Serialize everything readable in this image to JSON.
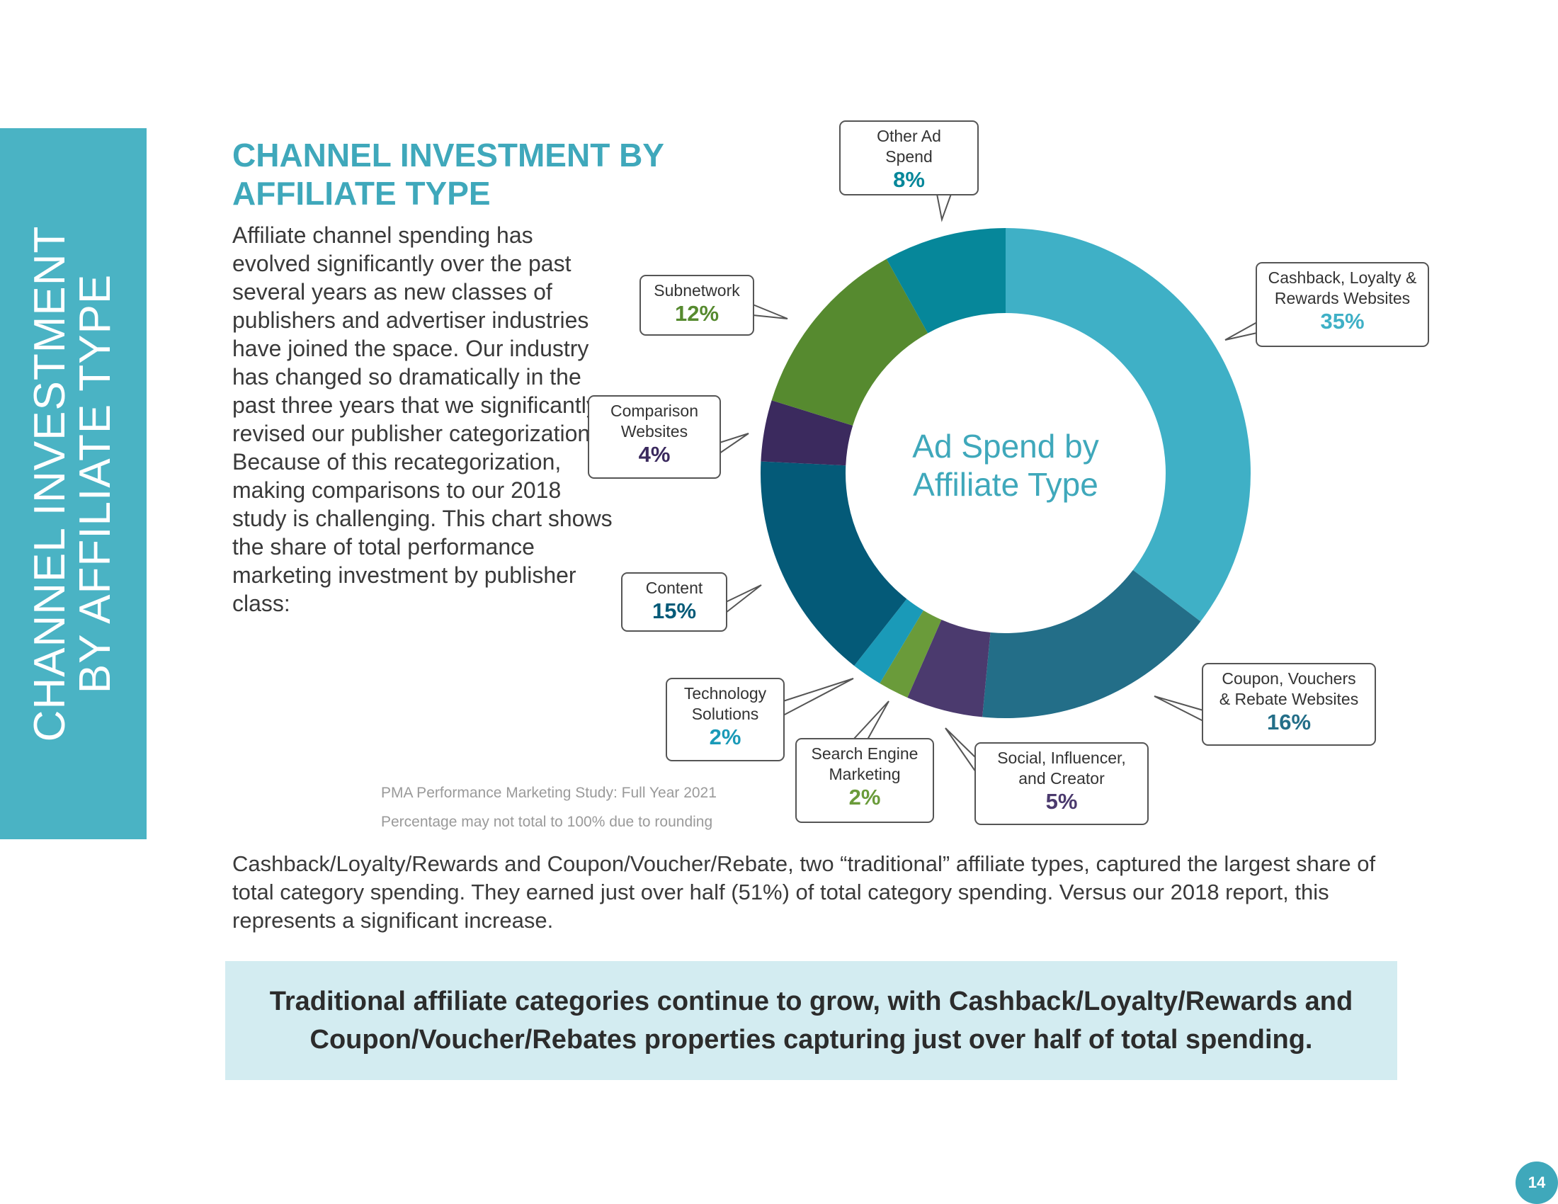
{
  "sidebar": {
    "line1": "CHANNEL INVESTMENT",
    "line2": "BY AFFILIATE TYPE"
  },
  "title": {
    "line1": "CHANNEL INVESTMENT BY",
    "line2": "AFFILIATE TYPE"
  },
  "intro": "Affiliate channel spending has evolved significantly over the past several years as new classes of publishers and advertiser industries have joined the space. Our industry has changed so dramatically in the past three years that we significantly revised our publisher categorization. Because of this recategorization, making comparisons to our 2018 study is challenging. This chart shows the share of total performance marketing investment by publisher class:",
  "chart_data": {
    "type": "pie",
    "title": "Ad Spend by Affiliate Type",
    "center_label": {
      "line1": "Ad Spend by",
      "line2": "Affiliate Type"
    },
    "slices": [
      {
        "label": "Cashback, Loyalty & Rewards Websites",
        "line1": "Cashback, Loyalty &",
        "line2": "Rewards Websites",
        "value": 35,
        "display": "35%",
        "color": "#3fb0c6",
        "label_color": "#3fb0c6"
      },
      {
        "label": "Coupon, Vouchers & Rebate Websites",
        "line1": "Coupon, Vouchers",
        "line2": "& Rebate Websites",
        "value": 16,
        "display": "16%",
        "color": "#236e88",
        "label_color": "#236e88"
      },
      {
        "label": "Social, Influencer, and Creator",
        "line1": "Social, Influencer,",
        "line2": "and Creator",
        "value": 5,
        "display": "5%",
        "color": "#4b3a6e",
        "label_color": "#4b3a6e"
      },
      {
        "label": "Search Engine Marketing",
        "line1": "Search Engine",
        "line2": "Marketing",
        "value": 2,
        "display": "2%",
        "color": "#6a9b3a",
        "label_color": "#6a9b3a"
      },
      {
        "label": "Technology Solutions",
        "line1": "Technology",
        "line2": "Solutions",
        "value": 2,
        "display": "2%",
        "color": "#1a9ab8",
        "label_color": "#1a9ab8"
      },
      {
        "label": "Content",
        "line1": "Content",
        "line2": "",
        "value": 15,
        "display": "15%",
        "color": "#045a78",
        "label_color": "#045a78"
      },
      {
        "label": "Comparison Websites",
        "line1": "Comparison",
        "line2": "Websites",
        "value": 4,
        "display": "4%",
        "color": "#3b2a5e",
        "label_color": "#3b2a5e"
      },
      {
        "label": "Subnetwork",
        "line1": "Subnetwork",
        "line2": "",
        "value": 12,
        "display": "12%",
        "color": "#568a2f",
        "label_color": "#568a2f"
      },
      {
        "label": "Other Ad Spend",
        "line1": "Other Ad",
        "line2": "Spend",
        "value": 8,
        "display": "8%",
        "color": "#06879a",
        "label_color": "#06879a"
      }
    ]
  },
  "source": {
    "line1": "PMA Performance Marketing Study: Full Year 2021",
    "line2": "Percentage may not total to 100% due to rounding"
  },
  "summary": "Cashback/Loyalty/Rewards and Coupon/Voucher/Rebate, two “traditional” affiliate types, captured the largest share of total category spending. They earned just over half (51%) of total category spending. Versus our 2018 report, this represents a significant increase.",
  "takeaway": "Traditional affiliate categories continue to grow, with Cashback/Loyalty/Rewards and Coupon/Voucher/Rebates properties capturing just over half of total spending.",
  "page_number": "14",
  "colors": {
    "accent": "#3fa8bb",
    "sidebar": "#4ab3c4",
    "takeaway_bg": "#d3ecf1"
  }
}
